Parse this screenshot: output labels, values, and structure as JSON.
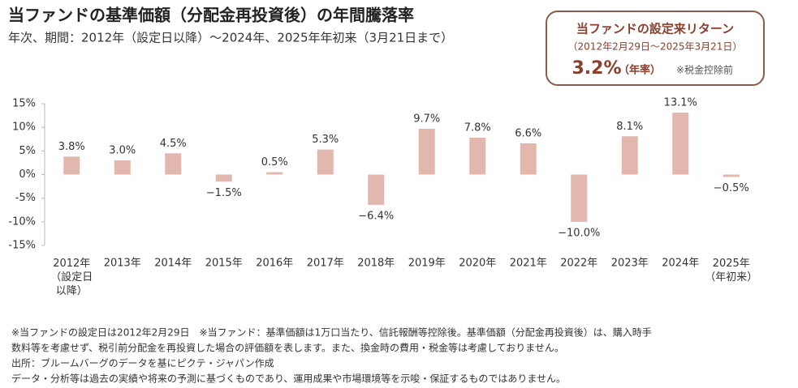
{
  "chart_data": {
    "type": "bar",
    "title": "当ファンドの基準価額（分配金再投資後）の年間騰落率",
    "subtitle": "年次、期間：2012年（設定日以降）～2024年、2025年年初来（3月21日まで）",
    "categories": [
      "2012年\n（設定日\n以降）",
      "2013年",
      "2014年",
      "2015年",
      "2016年",
      "2017年",
      "2018年",
      "2019年",
      "2020年",
      "2021年",
      "2022年",
      "2023年",
      "2024年",
      "2025年\n（年初来）"
    ],
    "values": [
      3.8,
      3.0,
      4.5,
      -1.5,
      0.5,
      5.3,
      -6.4,
      9.7,
      7.8,
      6.6,
      -10.0,
      8.1,
      13.1,
      -0.5
    ],
    "value_labels": [
      "3.8%",
      "3.0%",
      "4.5%",
      "−1.5%",
      "0.5%",
      "5.3%",
      "−6.4%",
      "9.7%",
      "7.8%",
      "6.6%",
      "−10.0%",
      "8.1%",
      "13.1%",
      "−0.5%"
    ],
    "color": "#e2b7ad",
    "ylim": [
      -15,
      15
    ],
    "yticks": [
      {
        "value": 15,
        "label": "15%"
      },
      {
        "value": 10,
        "label": "10%"
      },
      {
        "value": 5,
        "label": "5%"
      },
      {
        "value": 0,
        "label": "0%"
      },
      {
        "value": -5,
        "label": "-5%"
      },
      {
        "value": -10,
        "label": "-10%"
      },
      {
        "value": -15,
        "label": "-15%"
      }
    ],
    "grid": false
  },
  "return_box": {
    "title": "当ファンドの設定来リターン",
    "period": "（2012年2月29日～2025年3月21日）",
    "value": "3.2%",
    "unit": "（年率）",
    "note": "※税金控除前"
  },
  "footnotes": [
    "※当ファンドの設定日は2012年2月29日　※当ファンド：基準価額は1万口当たり、信託報酬等控除後。基準価額（分配金再投資後）は、購入時手",
    "数料等を考慮せず、税引前分配金を再投資した場合の評価額を表します。また、換金時の費用・税金等は考慮しておりません。",
    "出所：ブルームバーグのデータを基にピクテ・ジャパン作成",
    "データ・分析等は過去の実績や将来の予測に基づくものであり、運用成果や市場環境等を示唆・保証するものではありません。"
  ]
}
